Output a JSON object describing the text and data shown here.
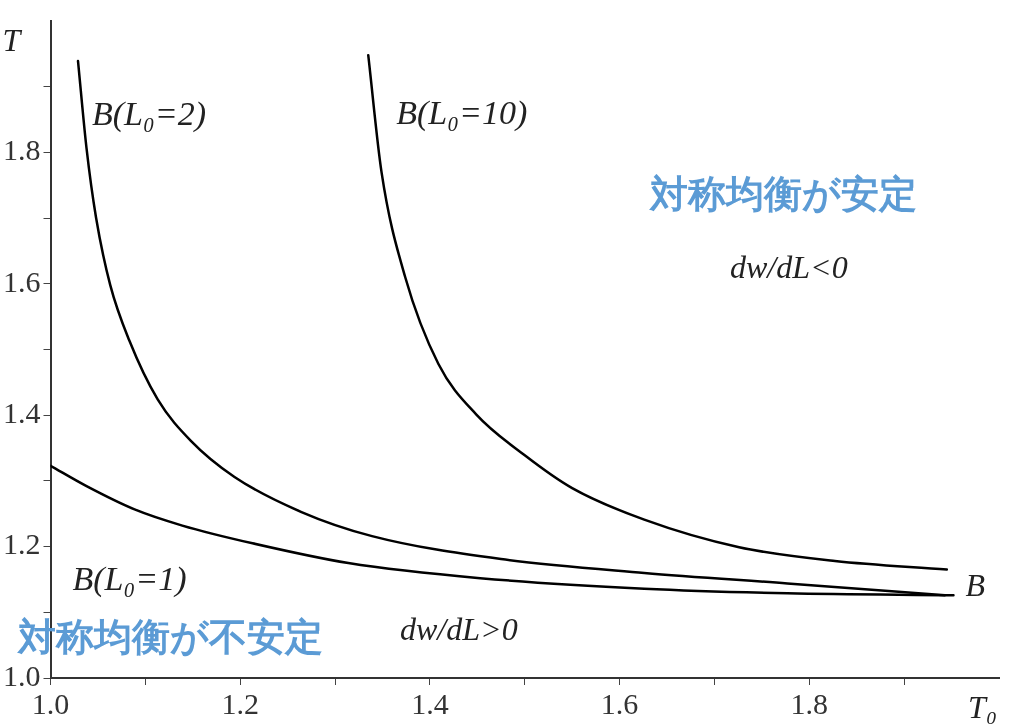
{
  "chart_data": {
    "type": "line",
    "xlabel": "T₀",
    "ylabel": "T",
    "xlim": [
      1.0,
      2.0
    ],
    "ylim": [
      1.0,
      2.0
    ],
    "xticks": [
      {
        "value": 1.0,
        "label": "1.0"
      },
      {
        "value": 1.1,
        "label": null
      },
      {
        "value": 1.2,
        "label": "1.2"
      },
      {
        "value": 1.3,
        "label": null
      },
      {
        "value": 1.4,
        "label": "1.4"
      },
      {
        "value": 1.5,
        "label": null
      },
      {
        "value": 1.6,
        "label": "1.6"
      },
      {
        "value": 1.7,
        "label": null
      },
      {
        "value": 1.8,
        "label": "1.8"
      },
      {
        "value": 1.9,
        "label": null
      }
    ],
    "yticks": [
      {
        "value": 1.0,
        "label": "1.0"
      },
      {
        "value": 1.1,
        "label": null
      },
      {
        "value": 1.2,
        "label": "1.2"
      },
      {
        "value": 1.3,
        "label": null
      },
      {
        "value": 1.4,
        "label": "1.4"
      },
      {
        "value": 1.5,
        "label": null
      },
      {
        "value": 1.6,
        "label": "1.6"
      },
      {
        "value": 1.7,
        "label": null
      },
      {
        "value": 1.8,
        "label": "1.8"
      },
      {
        "value": 1.9,
        "label": null
      }
    ],
    "grid": false,
    "legend": false,
    "series": [
      {
        "name": "B(L₀=2)",
        "color": "#000000",
        "x": [
          1.029,
          1.038,
          1.048,
          1.063,
          1.083,
          1.113,
          1.148,
          1.194,
          1.264,
          1.339,
          1.475,
          1.626,
          1.777,
          1.943
        ],
        "values": [
          1.939,
          1.806,
          1.701,
          1.598,
          1.514,
          1.424,
          1.361,
          1.306,
          1.253,
          1.216,
          1.181,
          1.16,
          1.144,
          1.126
        ]
      },
      {
        "name": "B(L₀=10)",
        "color": "#000000",
        "x": [
          1.335,
          1.349,
          1.374,
          1.409,
          1.449,
          1.5,
          1.55,
          1.626,
          1.726,
          1.827,
          1.945
        ],
        "values": [
          1.948,
          1.77,
          1.61,
          1.478,
          1.401,
          1.339,
          1.289,
          1.241,
          1.199,
          1.178,
          1.165
        ]
      },
      {
        "name": "B(L₀=1)",
        "color": "#000000",
        "x": [
          1.0,
          1.038,
          1.088,
          1.139,
          1.213,
          1.314,
          1.453,
          1.626,
          1.777,
          1.952
        ],
        "values": [
          1.323,
          1.292,
          1.257,
          1.232,
          1.205,
          1.175,
          1.152,
          1.136,
          1.129,
          1.126
        ]
      }
    ],
    "annotations": [
      {
        "text": "B",
        "x": 1.952,
        "y": 1.126
      },
      "対称均衡が安定",
      "dw/dL<0",
      "対称均衡が不安定",
      "dw/dL>0"
    ]
  }
}
